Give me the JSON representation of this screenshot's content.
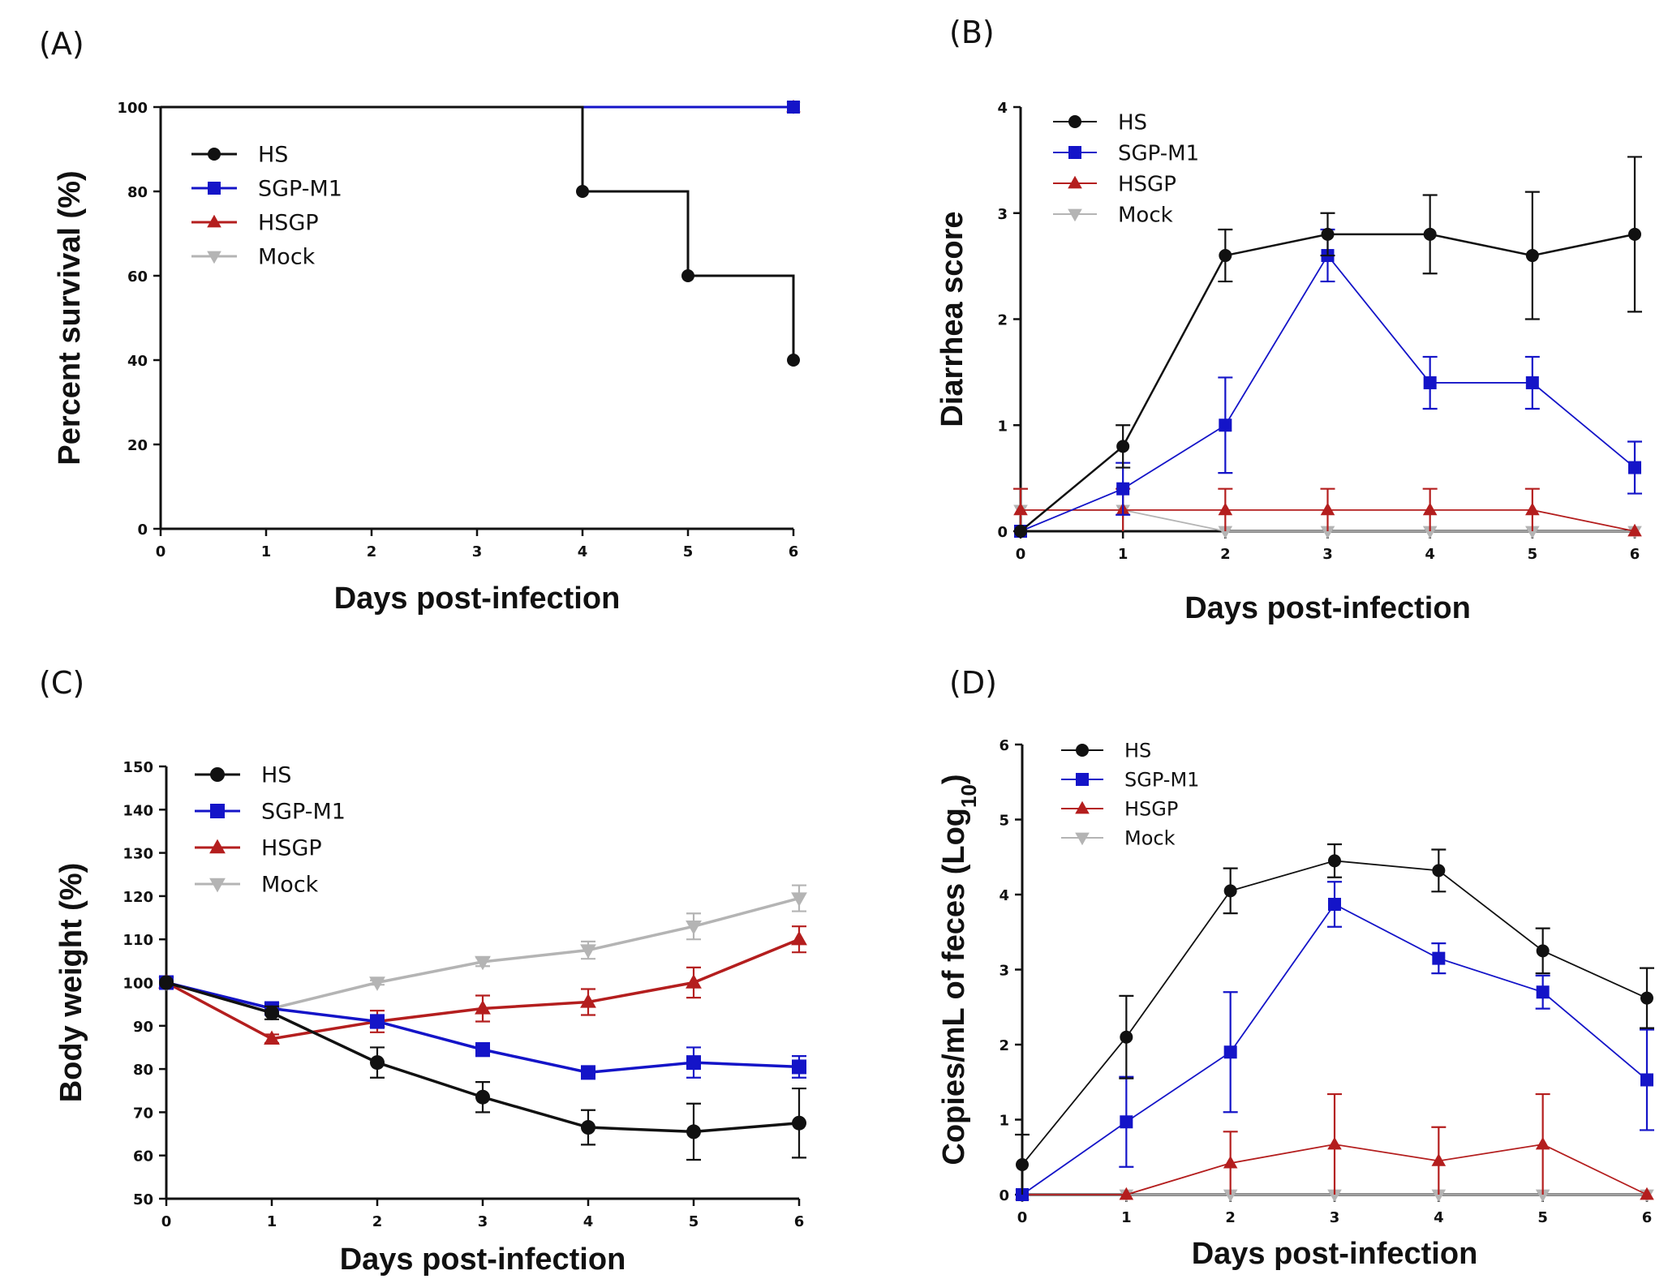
{
  "panels": [
    {
      "letter": "(A)"
    },
    {
      "letter": "(B)"
    },
    {
      "letter": "(C)"
    },
    {
      "letter": "(D)"
    }
  ],
  "colors": {
    "HS": "#111111",
    "SGP-M1": "#1414c8",
    "HSGP": "#b41e1e",
    "Mock": "#b4b4b4"
  },
  "chart_data": [
    {
      "type": "line",
      "style": "step",
      "xlabel": "Days post-infection",
      "ylabel": "Percent survival (%)",
      "xlim": [
        0,
        6
      ],
      "ylim": [
        0,
        100
      ],
      "xticks": [
        "0",
        "1",
        "2",
        "3",
        "4",
        "5",
        "6"
      ],
      "yticks": [
        "0",
        "20",
        "40",
        "60",
        "80",
        "100"
      ],
      "legend": [
        "HS",
        "SGP-M1",
        "HSGP",
        "Mock"
      ],
      "series": [
        {
          "name": "HS",
          "x": [
            0,
            4,
            5,
            6
          ],
          "y": [
            100,
            80,
            60,
            40
          ]
        },
        {
          "name": "SGP-M1",
          "x": [
            0,
            6
          ],
          "y": [
            100,
            100
          ]
        },
        {
          "name": "HSGP",
          "x": [
            0,
            6
          ],
          "y": [
            100,
            100
          ]
        },
        {
          "name": "Mock",
          "x": [
            0,
            6
          ],
          "y": [
            100,
            100
          ]
        }
      ]
    },
    {
      "type": "line",
      "xlabel": "Days post-infection",
      "ylabel": "Diarrhea score",
      "xlim": [
        0,
        6
      ],
      "ylim": [
        0,
        4
      ],
      "xticks": [
        "0",
        "1",
        "2",
        "3",
        "4",
        "5",
        "6"
      ],
      "yticks": [
        "0",
        "1",
        "2",
        "3",
        "4"
      ],
      "legend": [
        "HS",
        "SGP-M1",
        "HSGP",
        "Mock"
      ],
      "series": [
        {
          "name": "HS",
          "x": [
            0,
            1,
            2,
            3,
            4,
            5,
            6
          ],
          "y": [
            0,
            0.8,
            2.6,
            2.8,
            2.8,
            2.6,
            2.8
          ],
          "err": [
            0,
            0.2,
            0.245,
            0.2,
            0.37,
            0.6,
            0.73
          ]
        },
        {
          "name": "SGP-M1",
          "x": [
            0,
            1,
            2,
            3,
            4,
            5,
            6
          ],
          "y": [
            0,
            0.4,
            1.0,
            2.6,
            1.4,
            1.4,
            0.6
          ],
          "err": [
            0,
            0.245,
            0.45,
            0.245,
            0.245,
            0.245,
            0.245
          ]
        },
        {
          "name": "HSGP",
          "x": [
            0,
            1,
            2,
            3,
            4,
            5,
            6
          ],
          "y": [
            0.2,
            0.2,
            0.2,
            0.2,
            0.2,
            0.2,
            0
          ],
          "err": [
            0.2,
            0.2,
            0.2,
            0.2,
            0.2,
            0.2,
            0
          ]
        },
        {
          "name": "Mock",
          "x": [
            0,
            1,
            2,
            3,
            4,
            5,
            6
          ],
          "y": [
            0.2,
            0.2,
            0,
            0,
            0,
            0,
            0
          ],
          "err": [
            0.2,
            0.2,
            0,
            0,
            0,
            0,
            0
          ]
        }
      ]
    },
    {
      "type": "line",
      "xlabel": "Days post-infection",
      "ylabel": "Body weight (%)",
      "xlim": [
        0,
        6
      ],
      "ylim": [
        50,
        150
      ],
      "xticks": [
        "0",
        "1",
        "2",
        "3",
        "4",
        "5",
        "6"
      ],
      "yticks": [
        "50",
        "60",
        "70",
        "80",
        "90",
        "100",
        "110",
        "120",
        "130",
        "140",
        "150"
      ],
      "legend": [
        "HS",
        "SGP-M1",
        "HSGP",
        "Mock"
      ],
      "series": [
        {
          "name": "HS",
          "x": [
            0,
            1,
            2,
            3,
            4,
            5,
            6
          ],
          "y": [
            100,
            93,
            81.5,
            73.5,
            66.5,
            65.5,
            67.5
          ],
          "err": [
            0,
            1.5,
            3.5,
            3.5,
            4,
            6.5,
            8
          ]
        },
        {
          "name": "SGP-M1",
          "x": [
            0,
            1,
            2,
            3,
            4,
            5,
            6
          ],
          "y": [
            100,
            94,
            91,
            84.5,
            79.2,
            81.5,
            80.5
          ],
          "err": [
            0,
            1.2,
            1.5,
            1.5,
            1.2,
            3.5,
            2.5
          ]
        },
        {
          "name": "HSGP",
          "x": [
            0,
            1,
            2,
            3,
            4,
            5,
            6
          ],
          "y": [
            100,
            87,
            91,
            94,
            95.5,
            100,
            110
          ],
          "err": [
            0,
            1,
            2.5,
            3,
            3,
            3.5,
            3
          ]
        },
        {
          "name": "Mock",
          "x": [
            0,
            1,
            2,
            3,
            4,
            5,
            6
          ],
          "y": [
            100,
            94,
            100,
            104.8,
            107.5,
            113,
            119.5
          ],
          "err": [
            0,
            1,
            0.5,
            1,
            2,
            3,
            3
          ]
        }
      ]
    },
    {
      "type": "line",
      "xlabel": "Days post-infection",
      "ylabel": "Copies/mL of feces (Log",
      "ylabel_sub": "10",
      "ylabel_end": ")",
      "xlim": [
        0,
        6
      ],
      "ylim": [
        0,
        6
      ],
      "xticks": [
        "0",
        "1",
        "2",
        "3",
        "4",
        "5",
        "6"
      ],
      "yticks": [
        "0",
        "1",
        "2",
        "3",
        "4",
        "5",
        "6"
      ],
      "legend": [
        "HS",
        "SGP-M1",
        "HSGP",
        "Mock"
      ],
      "series": [
        {
          "name": "HS",
          "x": [
            0,
            1,
            2,
            3,
            4,
            5,
            6
          ],
          "y": [
            0.4,
            2.1,
            4.05,
            4.45,
            4.32,
            3.25,
            2.62
          ],
          "err": [
            0.4,
            0.55,
            0.3,
            0.22,
            0.28,
            0.3,
            0.4
          ]
        },
        {
          "name": "SGP-M1",
          "x": [
            0,
            1,
            2,
            3,
            4,
            5,
            6
          ],
          "y": [
            0,
            0.97,
            1.9,
            3.87,
            3.15,
            2.7,
            1.53
          ],
          "err": [
            0,
            0.6,
            0.8,
            0.3,
            0.2,
            0.22,
            0.67
          ]
        },
        {
          "name": "HSGP",
          "x": [
            0,
            1,
            2,
            3,
            4,
            5,
            6
          ],
          "y": [
            0,
            0,
            0.42,
            0.67,
            0.45,
            0.67,
            0
          ],
          "err": [
            0,
            0,
            0.42,
            0.67,
            0.45,
            0.67,
            0
          ]
        },
        {
          "name": "Mock",
          "x": [
            0,
            1,
            2,
            3,
            4,
            5,
            6
          ],
          "y": [
            0,
            0,
            0,
            0,
            0,
            0,
            0
          ],
          "err": [
            0,
            0,
            0,
            0,
            0,
            0,
            0
          ]
        }
      ]
    }
  ]
}
